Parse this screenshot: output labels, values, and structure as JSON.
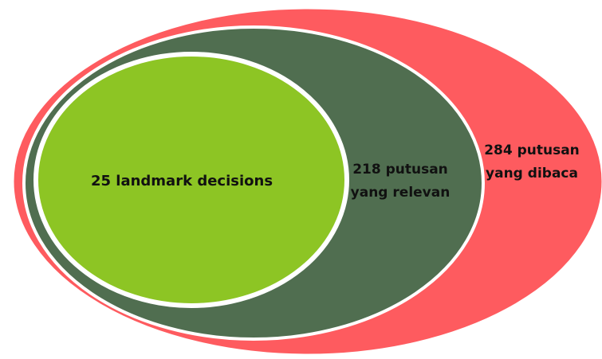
{
  "regions": [
    {
      "label": [
        "284 putusan",
        "yang dibaca"
      ]
    },
    {
      "label": [
        "218 putusan",
        "yang relevan"
      ]
    },
    {
      "label": [
        "25 landmark decisions"
      ]
    }
  ]
}
